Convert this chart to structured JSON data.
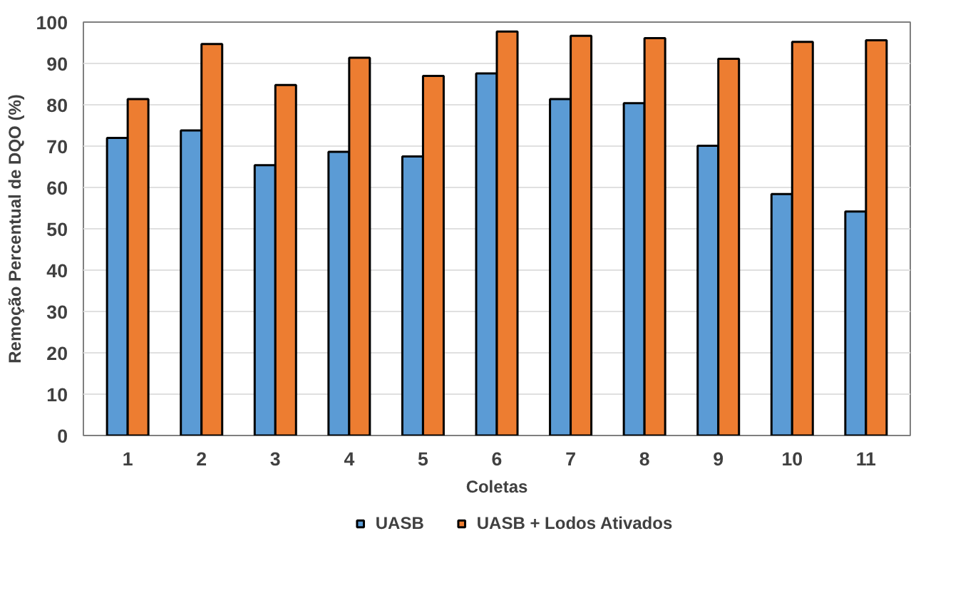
{
  "chart_data": {
    "type": "bar",
    "xlabel": "Coletas",
    "ylabel": "Remoção Percentual de DQO (%)",
    "categories": [
      "1",
      "2",
      "3",
      "4",
      "5",
      "6",
      "7",
      "8",
      "9",
      "10",
      "11"
    ],
    "series": [
      {
        "name": "UASB",
        "color": "#5b9bd5",
        "values": [
          72,
          73.8,
          65.4,
          68.6,
          67.5,
          87.6,
          81.4,
          80.4,
          70.1,
          58.4,
          54.2
        ]
      },
      {
        "name": "UASB + Lodos Ativados",
        "color": "#ed7d31",
        "values": [
          81.4,
          94.7,
          84.8,
          91.4,
          87,
          97.7,
          96.7,
          96.1,
          91.1,
          95.2,
          95.6
        ]
      }
    ],
    "ylim": [
      0,
      100
    ],
    "yticks": [
      0,
      10,
      20,
      30,
      40,
      50,
      60,
      70,
      80,
      90,
      100
    ],
    "grid": "y",
    "legend": "bottom"
  }
}
